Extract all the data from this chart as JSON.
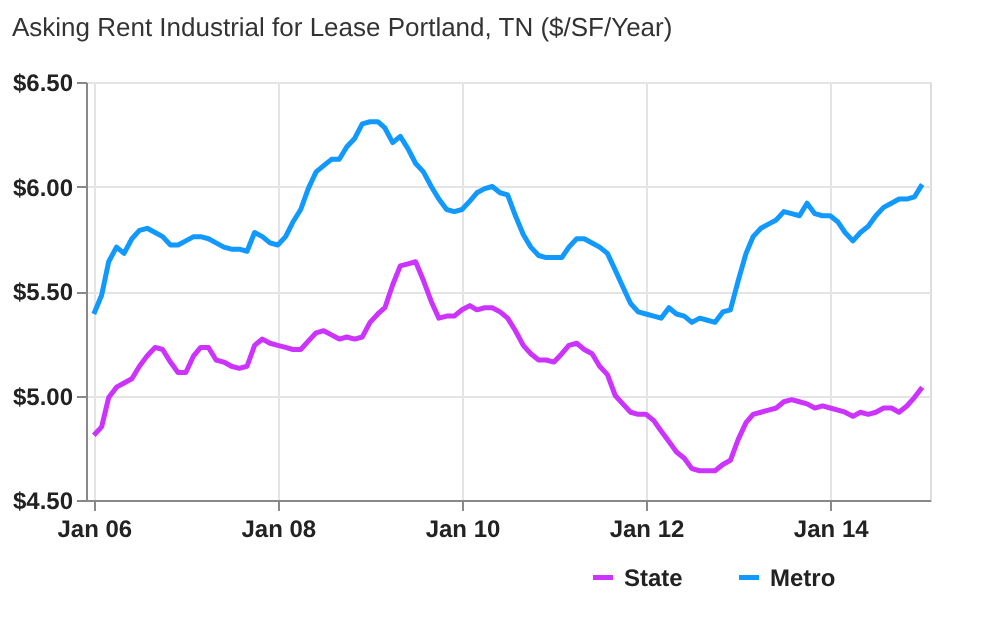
{
  "chart_data": {
    "type": "line",
    "title": "Asking Rent Industrial for Lease Portland, TN ($/SF/Year)",
    "x": [
      "2006-01",
      "2006-02",
      "2006-03",
      "2006-04",
      "2006-05",
      "2006-06",
      "2006-07",
      "2006-08",
      "2006-09",
      "2006-10",
      "2006-11",
      "2006-12",
      "2007-01",
      "2007-02",
      "2007-03",
      "2007-04",
      "2007-05",
      "2007-06",
      "2007-07",
      "2007-08",
      "2007-09",
      "2007-10",
      "2007-11",
      "2007-12",
      "2008-01",
      "2008-02",
      "2008-03",
      "2008-04",
      "2008-05",
      "2008-06",
      "2008-07",
      "2008-08",
      "2008-09",
      "2008-10",
      "2008-11",
      "2008-12",
      "2009-01",
      "2009-02",
      "2009-03",
      "2009-04",
      "2009-05",
      "2009-06",
      "2009-07",
      "2009-08",
      "2009-09",
      "2009-10",
      "2009-11",
      "2009-12",
      "2010-01",
      "2010-02",
      "2010-03",
      "2010-04",
      "2010-05",
      "2010-06",
      "2010-07",
      "2010-08",
      "2010-09",
      "2010-10",
      "2010-11",
      "2010-12",
      "2011-01",
      "2011-02",
      "2011-03",
      "2011-04",
      "2011-05",
      "2011-06",
      "2011-07",
      "2011-08",
      "2011-09",
      "2011-10",
      "2011-11",
      "2011-12",
      "2012-01",
      "2012-02",
      "2012-03",
      "2012-04",
      "2012-05",
      "2012-06",
      "2012-07",
      "2012-08",
      "2012-09",
      "2012-10",
      "2012-11",
      "2012-12",
      "2013-01",
      "2013-02",
      "2013-03",
      "2013-04",
      "2013-05",
      "2013-06",
      "2013-07",
      "2013-08",
      "2013-09",
      "2013-10",
      "2013-11",
      "2013-12",
      "2014-01",
      "2014-02",
      "2014-03",
      "2014-04",
      "2014-05",
      "2014-06",
      "2014-07",
      "2014-08",
      "2014-09",
      "2014-10",
      "2014-11",
      "2014-12",
      "2015-01"
    ],
    "series": [
      {
        "name": "State",
        "color": "#cc33ff",
        "values": [
          4.81,
          4.85,
          4.99,
          5.04,
          5.06,
          5.08,
          5.14,
          5.19,
          5.23,
          5.22,
          5.16,
          5.11,
          5.11,
          5.19,
          5.23,
          5.23,
          5.17,
          5.16,
          5.14,
          5.13,
          5.14,
          5.24,
          5.27,
          5.25,
          5.24,
          5.23,
          5.22,
          5.22,
          5.26,
          5.3,
          5.31,
          5.29,
          5.27,
          5.28,
          5.27,
          5.28,
          5.35,
          5.39,
          5.42,
          5.53,
          5.62,
          5.63,
          5.64,
          5.55,
          5.45,
          5.37,
          5.38,
          5.38,
          5.41,
          5.43,
          5.41,
          5.42,
          5.42,
          5.4,
          5.37,
          5.31,
          5.24,
          5.2,
          5.17,
          5.17,
          5.16,
          5.2,
          5.24,
          5.25,
          5.22,
          5.2,
          5.14,
          5.1,
          5.0,
          4.96,
          4.92,
          4.91,
          4.91,
          4.88,
          4.83,
          4.78,
          4.73,
          4.7,
          4.65,
          4.64,
          4.64,
          4.64,
          4.67,
          4.69,
          4.79,
          4.87,
          4.91,
          4.92,
          4.93,
          4.94,
          4.97,
          4.98,
          4.97,
          4.96,
          4.94,
          4.95,
          4.94,
          4.93,
          4.92,
          4.9,
          4.92,
          4.91,
          4.92,
          4.94,
          4.94,
          4.92,
          4.95,
          4.99,
          5.04
        ]
      },
      {
        "name": "Metro",
        "color": "#1199ff",
        "values": [
          5.39,
          5.48,
          5.64,
          5.71,
          5.68,
          5.75,
          5.79,
          5.8,
          5.78,
          5.76,
          5.72,
          5.72,
          5.74,
          5.76,
          5.76,
          5.75,
          5.73,
          5.71,
          5.7,
          5.7,
          5.69,
          5.78,
          5.76,
          5.73,
          5.72,
          5.76,
          5.83,
          5.89,
          5.99,
          6.07,
          6.1,
          6.13,
          6.13,
          6.19,
          6.23,
          6.3,
          6.31,
          6.31,
          6.28,
          6.21,
          6.24,
          6.18,
          6.11,
          6.07,
          6.0,
          5.94,
          5.89,
          5.88,
          5.89,
          5.93,
          5.97,
          5.99,
          6.0,
          5.97,
          5.96,
          5.86,
          5.77,
          5.71,
          5.67,
          5.66,
          5.66,
          5.66,
          5.71,
          5.75,
          5.75,
          5.73,
          5.71,
          5.68,
          5.6,
          5.52,
          5.44,
          5.4,
          5.39,
          5.38,
          5.37,
          5.42,
          5.39,
          5.38,
          5.35,
          5.37,
          5.36,
          5.35,
          5.4,
          5.41,
          5.55,
          5.68,
          5.76,
          5.8,
          5.82,
          5.84,
          5.88,
          5.87,
          5.86,
          5.92,
          5.87,
          5.86,
          5.86,
          5.83,
          5.78,
          5.74,
          5.78,
          5.81,
          5.86,
          5.9,
          5.92,
          5.94,
          5.94,
          5.95,
          6.01
        ]
      }
    ],
    "xlim": [
      "2005-12-01",
      "2015-02-01"
    ],
    "xticks": [
      {
        "value": "2006-01",
        "label": "Jan 06"
      },
      {
        "value": "2008-01",
        "label": "Jan 08"
      },
      {
        "value": "2010-01",
        "label": "Jan 10"
      },
      {
        "value": "2012-01",
        "label": "Jan 12"
      },
      {
        "value": "2014-01",
        "label": "Jan 14"
      }
    ],
    "ylim": [
      4.5,
      6.5
    ],
    "yticks": [
      {
        "value": 4.5,
        "label": "$4.50"
      },
      {
        "value": 5.0,
        "label": "$5.00"
      },
      {
        "value": 5.5,
        "label": "$5.50"
      },
      {
        "value": 6.0,
        "label": "$6.00"
      },
      {
        "value": 6.5,
        "label": "$6.50"
      }
    ],
    "grid": true,
    "legend": "bottom right",
    "marker": "none",
    "line_style": "solid"
  }
}
